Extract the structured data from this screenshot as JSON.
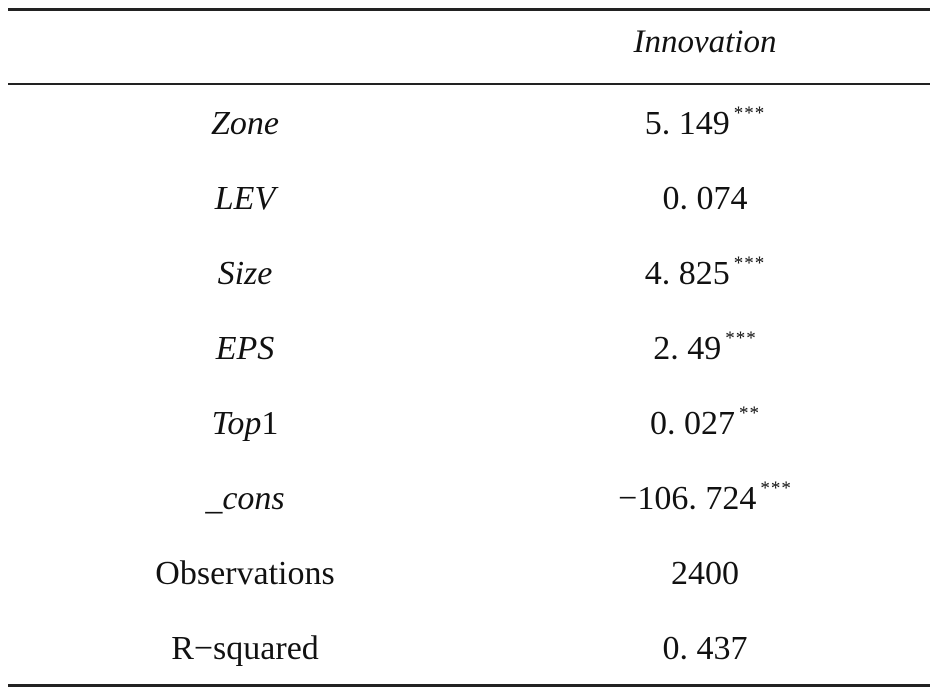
{
  "table": {
    "header": "Innovation",
    "rows": [
      {
        "label": "Zone",
        "italic": true,
        "suffix": "",
        "value": "5. 149",
        "stars": "***"
      },
      {
        "label": "LEV",
        "italic": true,
        "suffix": "",
        "value": "0. 074",
        "stars": ""
      },
      {
        "label": "Size",
        "italic": true,
        "suffix": "",
        "value": "4. 825",
        "stars": "***"
      },
      {
        "label": "EPS",
        "italic": true,
        "suffix": "",
        "value": "2. 49",
        "stars": "***"
      },
      {
        "label": "Top",
        "italic": true,
        "suffix": "1",
        "value": "0. 027",
        "stars": "**"
      },
      {
        "label": "_cons",
        "italic": true,
        "suffix": "",
        "value": "−106. 724",
        "stars": "***"
      },
      {
        "label": "Observations",
        "italic": false,
        "suffix": "",
        "value": "2400",
        "stars": ""
      },
      {
        "label": "R−squared",
        "italic": false,
        "suffix": "",
        "value": "0. 437",
        "stars": ""
      }
    ]
  }
}
